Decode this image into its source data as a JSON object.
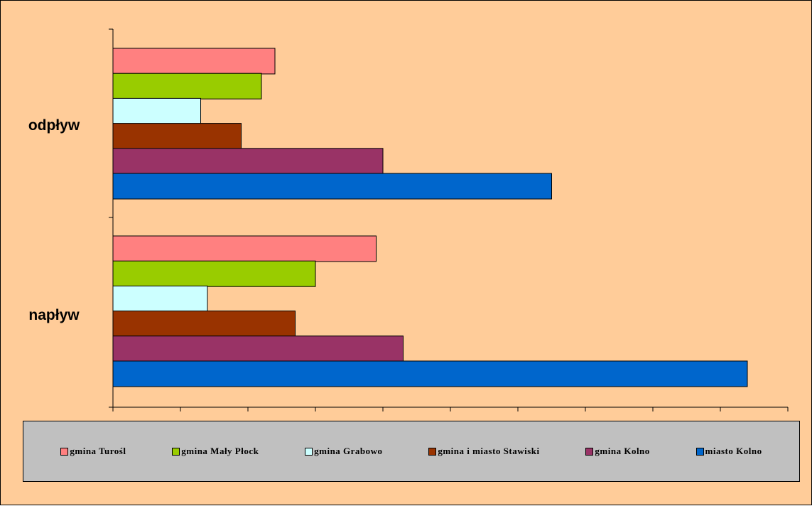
{
  "chart_data": {
    "type": "bar",
    "orientation": "horizontal",
    "categories": [
      "odpływ",
      "napływ"
    ],
    "series": [
      {
        "name": "gmina Turośl",
        "color": "#ff8080",
        "values": [
          24,
          39
        ]
      },
      {
        "name": "gmina Mały Płock",
        "color": "#99cc00",
        "values": [
          22,
          30
        ]
      },
      {
        "name": "gmina Grabowo",
        "color": "#ccffff",
        "values": [
          13,
          14
        ]
      },
      {
        "name": "gmina i miasto Stawiski",
        "color": "#993300",
        "values": [
          19,
          27
        ]
      },
      {
        "name": "gmina Kolno",
        "color": "#993366",
        "values": [
          40,
          43
        ]
      },
      {
        "name": "miasto Kolno",
        "color": "#0066cc",
        "values": [
          65,
          94
        ]
      }
    ],
    "xlim": [
      0,
      100
    ],
    "x_ticks": 10,
    "title": "",
    "xlabel": "",
    "ylabel": "",
    "grid": false,
    "legend": "bottom",
    "background": "#ffcc99",
    "legend_background": "#c0c0c0"
  }
}
